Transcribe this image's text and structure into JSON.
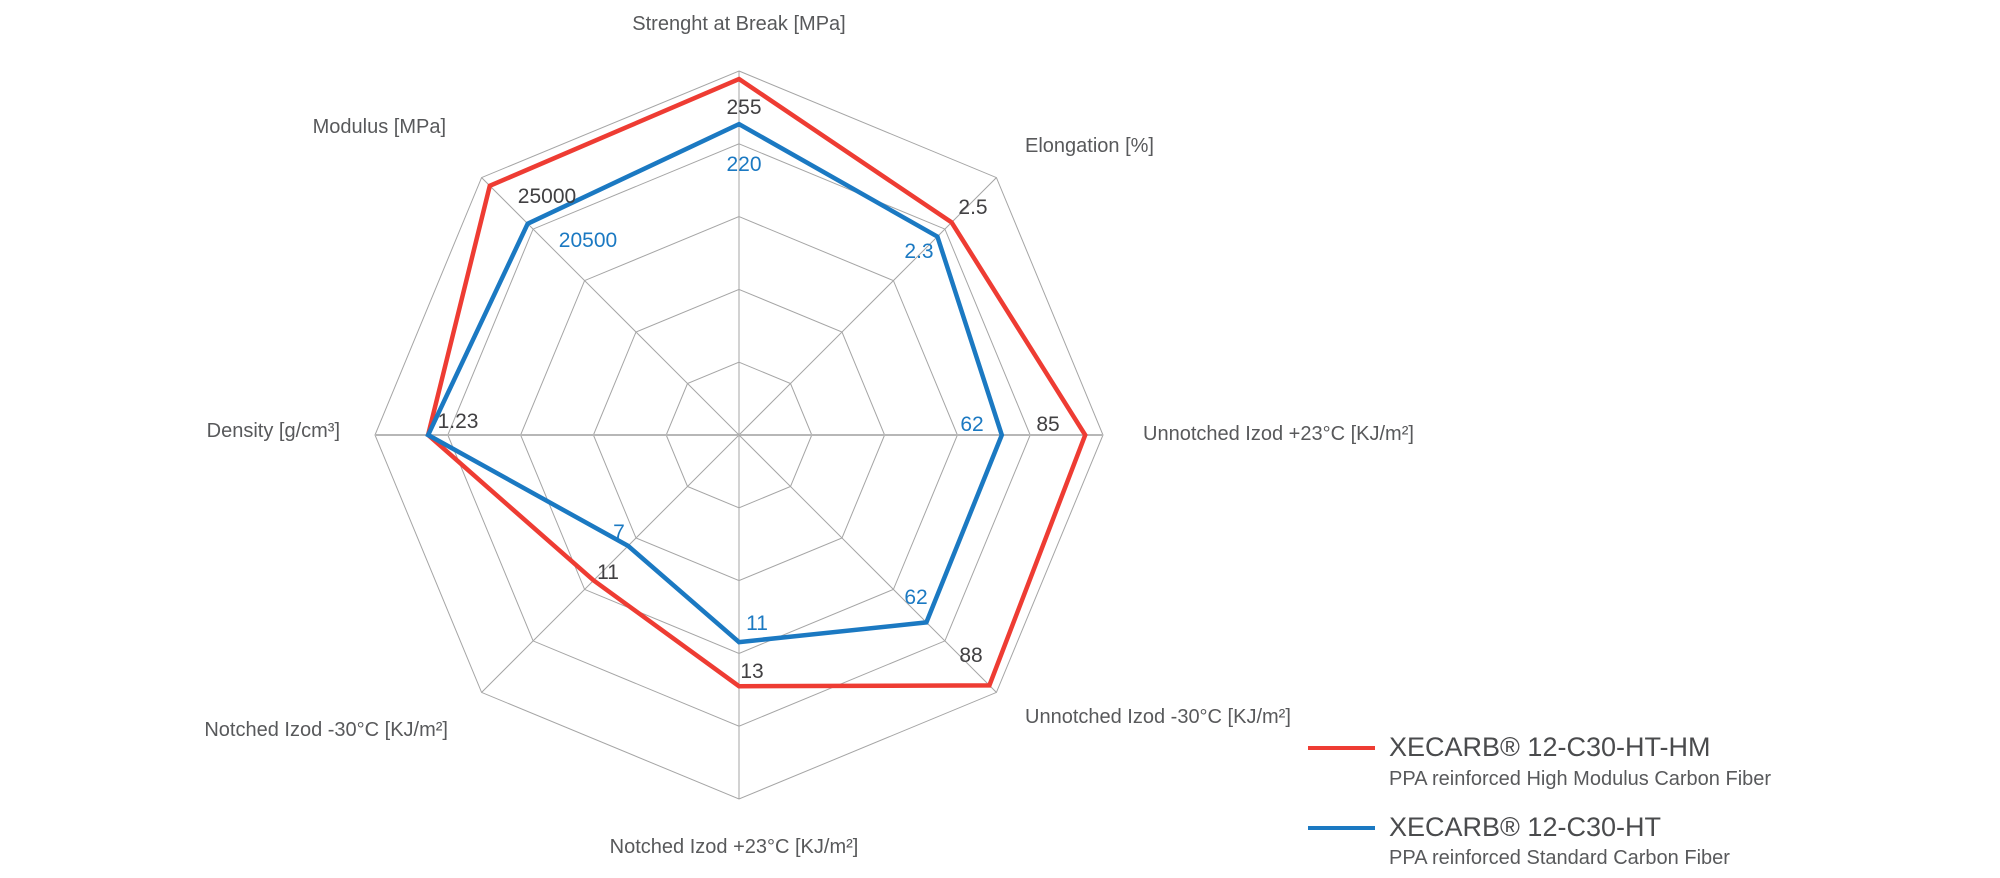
{
  "chart_data": {
    "type": "radar",
    "grid": {
      "shape": "octagon",
      "rings": 5,
      "axes_count": 8
    },
    "axes": [
      {
        "label": "Strenght at Break [MPa]"
      },
      {
        "label": "Elongation [%]"
      },
      {
        "label": "Unnotched Izod +23°C [KJ/m²]"
      },
      {
        "label": "Unnotched Izod -30°C [KJ/m²]"
      },
      {
        "label": "Notched Izod +23°C [KJ/m²]"
      },
      {
        "label": "Notched Izod -30°C [KJ/m²]"
      },
      {
        "label": "Density [g/cm³]"
      },
      {
        "label": "Modulus [MPa]"
      }
    ],
    "series": [
      {
        "name": "XECARB® 12-C30-HT-HM",
        "color": "#ee3c33",
        "label_color": "#414042",
        "values": [
          255,
          2.5,
          85,
          88,
          13,
          11,
          1.23,
          25000
        ],
        "labels": [
          "255",
          "2.5",
          "85",
          "88",
          "13",
          "11",
          "1.23",
          "25000"
        ],
        "radius_fractions": [
          0.978,
          0.826,
          0.951,
          0.973,
          0.69,
          0.565,
          0.854,
          0.968
        ]
      },
      {
        "name": "XECARB® 12-C30-HT",
        "color": "#1b79c2",
        "label_color": "#1b79c2",
        "values": [
          220,
          2.3,
          62,
          62,
          11,
          7,
          1.23,
          20500
        ],
        "labels": [
          "220",
          "2.3",
          "62",
          "62",
          "11",
          "7",
          "",
          "20500"
        ],
        "radius_fractions": [
          0.854,
          0.771,
          0.722,
          0.728,
          0.569,
          0.431,
          0.854,
          0.821
        ]
      }
    ]
  },
  "legend": {
    "entries": [
      {
        "name": "XECARB® 12-C30-HT-HM",
        "description": "PPA reinforced High Modulus Carbon Fiber",
        "color": "#ee3c33"
      },
      {
        "name": "XECARB® 12-C30-HT",
        "description": "PPA reinforced Standard Carbon Fiber",
        "color": "#1b79c2"
      }
    ]
  },
  "colors": {
    "background": "#ffffff",
    "grid": "#a5a5a5",
    "axis_text": "#58595b",
    "red_series": "#ee3c33",
    "blue_series": "#1b79c2"
  }
}
